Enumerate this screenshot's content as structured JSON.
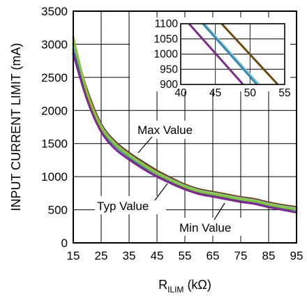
{
  "chart_data": {
    "type": "line",
    "xlabel_main": "R",
    "xlabel_sub": "ILIM",
    "xlabel_unit": " (kΩ)",
    "ylabel": "INPUT CURRENT LIMIT (mA)",
    "xlim": [
      15,
      95
    ],
    "ylim": [
      0,
      3500
    ],
    "x_ticks": [
      "15",
      "25",
      "35",
      "45",
      "55",
      "65",
      "75",
      "85",
      "95"
    ],
    "y_ticks": [
      "0",
      "500",
      "1000",
      "1500",
      "2000",
      "2500",
      "3000",
      "3500"
    ],
    "grid": true,
    "annotations": [
      "Max Value",
      "Typ Value",
      "Min Value"
    ],
    "series": [
      {
        "color": "#6b4a10",
        "x": [
          15,
          20,
          25,
          30,
          35,
          40,
          45,
          50,
          55,
          60,
          65,
          70,
          75,
          80,
          85,
          90,
          95
        ],
        "y": [
          3000,
          2300,
          1790,
          1530,
          1360,
          1220,
          1090,
          980,
          880,
          810,
          770,
          730,
          690,
          660,
          610,
          570,
          540
        ]
      },
      {
        "color": "#8ecbe6",
        "x": [
          15,
          20,
          25,
          30,
          35,
          40,
          45,
          50,
          55,
          60,
          65,
          70,
          75,
          80,
          85,
          90,
          95
        ],
        "y": [
          2960,
          2250,
          1760,
          1500,
          1330,
          1190,
          1060,
          955,
          860,
          790,
          750,
          710,
          670,
          640,
          590,
          550,
          520
        ]
      },
      {
        "color": "#3e86a6",
        "x": [
          15,
          20,
          25,
          30,
          35,
          40,
          45,
          50,
          55,
          60,
          65,
          70,
          75,
          80,
          85,
          90,
          95
        ],
        "y": [
          2920,
          2210,
          1730,
          1470,
          1300,
          1160,
          1040,
          930,
          840,
          770,
          730,
          690,
          650,
          620,
          570,
          530,
          500
        ]
      },
      {
        "color": "#8ac43c",
        "x": [
          15,
          20,
          25,
          30,
          35,
          40,
          45,
          50,
          55,
          60,
          65,
          70,
          75,
          80,
          85,
          90,
          95
        ],
        "y": [
          3100,
          2260,
          1750,
          1490,
          1320,
          1180,
          1050,
          945,
          850,
          780,
          740,
          700,
          660,
          630,
          580,
          540,
          510
        ]
      },
      {
        "color": "#7a2c86",
        "x": [
          15,
          20,
          25,
          30,
          35,
          40,
          45,
          50,
          55,
          60,
          65,
          70,
          75,
          80,
          85,
          90,
          95
        ],
        "y": [
          2860,
          2160,
          1680,
          1420,
          1260,
          1120,
          1000,
          900,
          810,
          740,
          700,
          660,
          620,
          590,
          540,
          500,
          460
        ]
      }
    ],
    "inset": {
      "xlim": [
        40,
        55
      ],
      "ylim": [
        900,
        1100
      ],
      "x_ticks": [
        "40",
        "45",
        "50",
        "55"
      ],
      "y_ticks": [
        "900",
        "950",
        "1000",
        "1050",
        "1100"
      ],
      "series": [
        {
          "color": "#6b4a10",
          "x": [
            45.9,
            54
          ],
          "y": [
            1100,
            900
          ]
        },
        {
          "color": "#8ecbe6",
          "x": [
            43.4,
            51.3
          ],
          "y": [
            1100,
            900
          ]
        },
        {
          "color": "#3e86a6",
          "x": [
            43.2,
            51.0
          ],
          "y": [
            1100,
            900
          ]
        },
        {
          "color": "#7a2c86",
          "x": [
            41.2,
            49.0
          ],
          "y": [
            1100,
            900
          ]
        }
      ]
    }
  }
}
